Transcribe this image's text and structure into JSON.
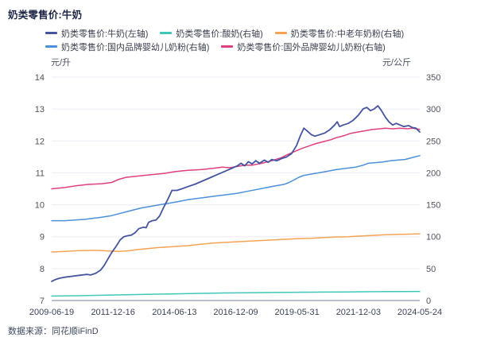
{
  "page": {
    "source": "数据来源：同花顺iFinD"
  },
  "colors": {
    "grid": "#ebebf3",
    "axis_line": "#b9c0ce",
    "y_tick_text": "#4c5260",
    "x_tick_text": "#3a4256"
  },
  "chart_data": {
    "type": "line",
    "title": "奶类零售价:牛奶",
    "legend_position": "top",
    "grid": "horizontal-only",
    "x_range": [
      2009.47,
      2024.4
    ],
    "x_tick_labels": [
      "2009-06-19",
      "2011-12-16",
      "2014-06-13",
      "2016-12-09",
      "2019-05-31",
      "2021-12-03",
      "2024-05-24"
    ],
    "left_axis": {
      "unit": "元/升",
      "min": 7,
      "max": 14,
      "ticks": [
        14,
        13,
        12,
        11,
        10,
        9,
        8,
        7
      ]
    },
    "right_axis": {
      "unit": "元/公斤",
      "min": 0,
      "max": 350,
      "ticks": [
        350,
        300,
        250,
        200,
        150,
        100,
        50,
        0
      ]
    },
    "draw_order": [
      1,
      2,
      3,
      4,
      0
    ],
    "series": [
      {
        "name": "奶类零售价:牛奶(左轴)",
        "axis": "left",
        "color": "#44549e",
        "points": [
          [
            2009.47,
            7.6
          ],
          [
            2009.6,
            7.65
          ],
          [
            2009.8,
            7.7
          ],
          [
            2010.0,
            7.73
          ],
          [
            2010.3,
            7.76
          ],
          [
            2010.6,
            7.79
          ],
          [
            2010.9,
            7.82
          ],
          [
            2011.05,
            7.8
          ],
          [
            2011.25,
            7.85
          ],
          [
            2011.45,
            7.95
          ],
          [
            2011.6,
            8.1
          ],
          [
            2011.75,
            8.3
          ],
          [
            2011.9,
            8.5
          ],
          [
            2012.1,
            8.72
          ],
          [
            2012.25,
            8.9
          ],
          [
            2012.4,
            9.0
          ],
          [
            2012.55,
            9.03
          ],
          [
            2012.7,
            9.05
          ],
          [
            2012.85,
            9.12
          ],
          [
            2013.0,
            9.25
          ],
          [
            2013.2,
            9.3
          ],
          [
            2013.3,
            9.28
          ],
          [
            2013.4,
            9.45
          ],
          [
            2013.55,
            9.5
          ],
          [
            2013.7,
            9.52
          ],
          [
            2013.85,
            9.65
          ],
          [
            2014.0,
            9.9
          ],
          [
            2014.2,
            10.2
          ],
          [
            2014.35,
            10.45
          ],
          [
            2014.55,
            10.45
          ],
          [
            2014.75,
            10.5
          ],
          [
            2015.0,
            10.57
          ],
          [
            2015.3,
            10.65
          ],
          [
            2015.6,
            10.75
          ],
          [
            2015.9,
            10.85
          ],
          [
            2016.2,
            10.95
          ],
          [
            2016.5,
            11.05
          ],
          [
            2016.8,
            11.15
          ],
          [
            2017.0,
            11.22
          ],
          [
            2017.15,
            11.3
          ],
          [
            2017.3,
            11.22
          ],
          [
            2017.45,
            11.35
          ],
          [
            2017.6,
            11.28
          ],
          [
            2017.75,
            11.38
          ],
          [
            2017.9,
            11.3
          ],
          [
            2018.1,
            11.4
          ],
          [
            2018.25,
            11.33
          ],
          [
            2018.4,
            11.42
          ],
          [
            2018.6,
            11.38
          ],
          [
            2018.8,
            11.45
          ],
          [
            2019.0,
            11.5
          ],
          [
            2019.2,
            11.6
          ],
          [
            2019.4,
            11.85
          ],
          [
            2019.55,
            12.15
          ],
          [
            2019.7,
            12.4
          ],
          [
            2019.85,
            12.3
          ],
          [
            2020.0,
            12.2
          ],
          [
            2020.15,
            12.15
          ],
          [
            2020.35,
            12.2
          ],
          [
            2020.55,
            12.25
          ],
          [
            2020.75,
            12.35
          ],
          [
            2020.95,
            12.5
          ],
          [
            2021.05,
            12.6
          ],
          [
            2021.15,
            12.45
          ],
          [
            2021.3,
            12.5
          ],
          [
            2021.5,
            12.55
          ],
          [
            2021.7,
            12.65
          ],
          [
            2021.9,
            12.8
          ],
          [
            2022.1,
            13.0
          ],
          [
            2022.25,
            13.05
          ],
          [
            2022.4,
            12.95
          ],
          [
            2022.55,
            13.0
          ],
          [
            2022.7,
            13.1
          ],
          [
            2022.85,
            12.95
          ],
          [
            2023.0,
            12.75
          ],
          [
            2023.15,
            12.6
          ],
          [
            2023.3,
            12.5
          ],
          [
            2023.45,
            12.55
          ],
          [
            2023.6,
            12.5
          ],
          [
            2023.75,
            12.45
          ],
          [
            2023.95,
            12.48
          ],
          [
            2024.1,
            12.42
          ],
          [
            2024.25,
            12.4
          ],
          [
            2024.4,
            12.28
          ]
        ]
      },
      {
        "name": "奶类零售价:酸奶(右轴)",
        "axis": "right",
        "color": "#3ec8b8",
        "points": [
          [
            2009.47,
            7.0
          ],
          [
            2010.5,
            7.5
          ],
          [
            2011.5,
            8.2
          ],
          [
            2012.5,
            9.0
          ],
          [
            2013.5,
            9.8
          ],
          [
            2014.5,
            10.5
          ],
          [
            2015.5,
            11.2
          ],
          [
            2016.5,
            11.8
          ],
          [
            2017.5,
            12.2
          ],
          [
            2018.5,
            12.6
          ],
          [
            2019.5,
            12.9
          ],
          [
            2020.5,
            13.2
          ],
          [
            2021.5,
            13.5
          ],
          [
            2022.5,
            13.8
          ],
          [
            2023.5,
            14.0
          ],
          [
            2024.4,
            14.2
          ]
        ]
      },
      {
        "name": "奶类零售价:中老年奶粉(右轴)",
        "axis": "right",
        "color": "#f5a353",
        "points": [
          [
            2009.47,
            76
          ],
          [
            2010.0,
            77
          ],
          [
            2010.5,
            78
          ],
          [
            2011.0,
            78.5
          ],
          [
            2011.4,
            78.5
          ],
          [
            2011.8,
            77.5
          ],
          [
            2012.2,
            77
          ],
          [
            2012.6,
            78
          ],
          [
            2013.0,
            80
          ],
          [
            2013.4,
            81.5
          ],
          [
            2013.8,
            83
          ],
          [
            2014.2,
            84
          ],
          [
            2014.6,
            85
          ],
          [
            2015.0,
            86
          ],
          [
            2015.5,
            88
          ],
          [
            2016.0,
            90
          ],
          [
            2016.5,
            91
          ],
          [
            2017.0,
            92
          ],
          [
            2017.5,
            93
          ],
          [
            2018.0,
            94
          ],
          [
            2018.5,
            95
          ],
          [
            2019.0,
            96
          ],
          [
            2019.5,
            97
          ],
          [
            2020.0,
            97.5
          ],
          [
            2020.5,
            98.5
          ],
          [
            2021.0,
            99.5
          ],
          [
            2021.5,
            100
          ],
          [
            2022.0,
            101
          ],
          [
            2022.5,
            102
          ],
          [
            2023.0,
            103
          ],
          [
            2023.5,
            103.5
          ],
          [
            2024.0,
            104
          ],
          [
            2024.4,
            104.5
          ]
        ]
      },
      {
        "name": "奶类零售价:国内品牌婴幼儿奶粉(右轴)",
        "axis": "right",
        "color": "#4b90db",
        "points": [
          [
            2009.47,
            125
          ],
          [
            2010.0,
            125
          ],
          [
            2010.4,
            126
          ],
          [
            2010.8,
            127
          ],
          [
            2011.2,
            129
          ],
          [
            2011.6,
            131
          ],
          [
            2011.9,
            133
          ],
          [
            2012.2,
            136
          ],
          [
            2012.5,
            139
          ],
          [
            2012.8,
            142
          ],
          [
            2013.1,
            145
          ],
          [
            2013.4,
            147
          ],
          [
            2013.7,
            149
          ],
          [
            2014.0,
            151
          ],
          [
            2014.3,
            153
          ],
          [
            2014.6,
            155
          ],
          [
            2015.0,
            158
          ],
          [
            2015.4,
            160
          ],
          [
            2015.8,
            162
          ],
          [
            2016.2,
            164
          ],
          [
            2016.6,
            166
          ],
          [
            2017.0,
            168
          ],
          [
            2017.4,
            171
          ],
          [
            2017.8,
            174
          ],
          [
            2018.2,
            177
          ],
          [
            2018.6,
            180
          ],
          [
            2018.9,
            182
          ],
          [
            2019.1,
            185
          ],
          [
            2019.3,
            189
          ],
          [
            2019.5,
            193
          ],
          [
            2019.7,
            196
          ],
          [
            2020.0,
            198
          ],
          [
            2020.3,
            200
          ],
          [
            2020.6,
            202
          ],
          [
            2021.0,
            205
          ],
          [
            2021.4,
            207
          ],
          [
            2021.8,
            209
          ],
          [
            2022.1,
            212
          ],
          [
            2022.3,
            215
          ],
          [
            2022.6,
            216
          ],
          [
            2022.9,
            217
          ],
          [
            2023.2,
            219
          ],
          [
            2023.5,
            220
          ],
          [
            2023.8,
            221
          ],
          [
            2024.0,
            223
          ],
          [
            2024.2,
            225
          ],
          [
            2024.4,
            227
          ]
        ]
      },
      {
        "name": "奶类零售价:国外品牌婴幼儿奶粉(右轴)",
        "axis": "right",
        "color": "#de3f80",
        "points": [
          [
            2009.47,
            175
          ],
          [
            2010.0,
            177
          ],
          [
            2010.5,
            180
          ],
          [
            2011.0,
            182
          ],
          [
            2011.5,
            183
          ],
          [
            2011.9,
            185
          ],
          [
            2012.2,
            190
          ],
          [
            2012.5,
            193
          ],
          [
            2013.0,
            195
          ],
          [
            2013.5,
            197
          ],
          [
            2014.0,
            199
          ],
          [
            2014.5,
            202
          ],
          [
            2015.0,
            204
          ],
          [
            2015.5,
            205
          ],
          [
            2016.0,
            207
          ],
          [
            2016.4,
            209
          ],
          [
            2016.7,
            208
          ],
          [
            2017.0,
            210
          ],
          [
            2017.3,
            212
          ],
          [
            2017.6,
            212
          ],
          [
            2018.0,
            215
          ],
          [
            2018.4,
            219
          ],
          [
            2018.8,
            224
          ],
          [
            2019.0,
            228
          ],
          [
            2019.3,
            233
          ],
          [
            2019.6,
            238
          ],
          [
            2019.9,
            242
          ],
          [
            2020.2,
            246
          ],
          [
            2020.5,
            249
          ],
          [
            2020.8,
            252
          ],
          [
            2021.0,
            255
          ],
          [
            2021.3,
            258
          ],
          [
            2021.6,
            262
          ],
          [
            2021.9,
            264
          ],
          [
            2022.2,
            266
          ],
          [
            2022.5,
            268
          ],
          [
            2022.8,
            269
          ],
          [
            2023.0,
            270
          ],
          [
            2023.3,
            269
          ],
          [
            2023.6,
            270
          ],
          [
            2023.9,
            269
          ],
          [
            2024.1,
            270
          ],
          [
            2024.25,
            269
          ],
          [
            2024.4,
            268
          ]
        ]
      }
    ]
  }
}
